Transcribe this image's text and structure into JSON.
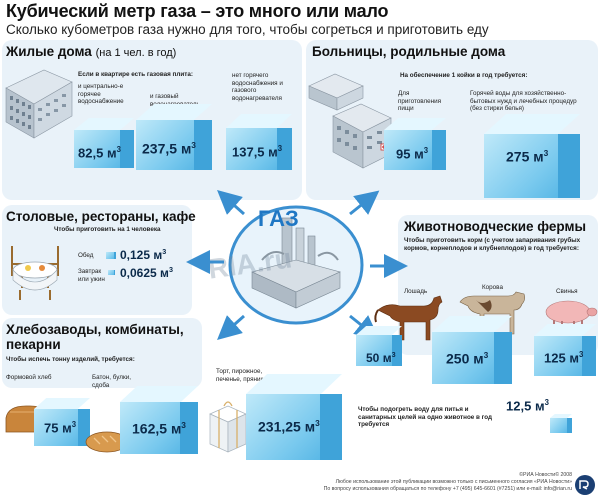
{
  "title": "Кубический метр газа – это много или мало",
  "subtitle": "Сколько кубометров газа нужно для того, чтобы согреться и приготовить еду",
  "center_label": "ГАЗ",
  "watermark": "RIA.ru",
  "unit": "м",
  "unit_exp": "3",
  "residential": {
    "title": "Жилые дома",
    "title_note": "(на 1 чел. в год)",
    "condition_header": "Если в квартире есть газовая плита:",
    "items": [
      {
        "label": "и центрально-е горячее водоснабжение",
        "value": "82,5"
      },
      {
        "label": "и газовый водонагреватель",
        "value": "237,5"
      },
      {
        "label": "нет горячего водоснабжения и газового водонагревателя",
        "value": "137,5"
      }
    ]
  },
  "hospitals": {
    "title": "Больницы, родильные дома",
    "header": "На обеспечение 1 койки в год требуется:",
    "items": [
      {
        "label": "Для приготовления пищи",
        "value": "95"
      },
      {
        "label": "Горячей воды для хозяйственно-бытовых нужд и лечебных процедур (без стирки белья)",
        "value": "275"
      }
    ]
  },
  "canteens": {
    "title": "Столовые, рестораны, кафе",
    "header": "Чтобы приготовить на 1 человека",
    "items": [
      {
        "label": "Обед",
        "value": "0,125"
      },
      {
        "label": "Завтрак или ужин",
        "value": "0,0625"
      }
    ]
  },
  "farms": {
    "title": "Животноводческие фермы",
    "header": "Чтобы приготовить корм (с учетом запаривания грубых кормов, корнеплодов и клубнеплодов) в год требуется:",
    "items": [
      {
        "label": "Лошадь",
        "value": "50"
      },
      {
        "label": "Корова",
        "value": "250"
      },
      {
        "label": "Свинья",
        "value": "125"
      }
    ],
    "water_note": "Чтобы подогреть воду для питья и санитарных целей на одно животное в год требуется",
    "water_value": "12,5"
  },
  "bakeries": {
    "title_line1": "Хлебозаводы, комбинаты,",
    "title_line2": "пекарни",
    "header": "Чтобы испечь тонну изделий, требуется:",
    "items": [
      {
        "label": "Формовой хлеб",
        "value": "75"
      },
      {
        "label": "Батон, булки, сдоба",
        "value": "162,5"
      },
      {
        "label": "Торт, пирожное, печенье, пряники",
        "value": "231,25"
      }
    ]
  },
  "footer": {
    "line1": "©РИА Новости© 2008",
    "line2": "Любое использование этой публикации возможно только с письменного согласия «РИА Новости»",
    "line3": "По вопросу использования обращаться по телефону +7 (495) 645-6601 (#7251) или e-mail: info@rian.ru"
  },
  "colors": {
    "panel": "#e9f2f9",
    "cube_front": "#79c9ee",
    "cube_top": "#e4f7ff",
    "cube_side": "#3fa3d9",
    "arrow": "#3a8fd0",
    "text": "#111111"
  }
}
